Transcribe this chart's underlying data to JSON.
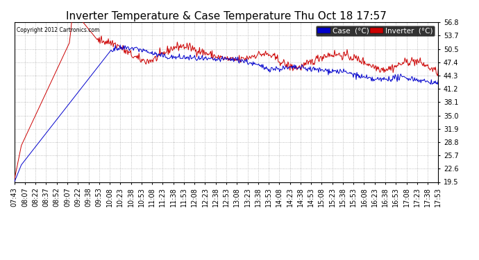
{
  "title": "Inverter Temperature & Case Temperature Thu Oct 18 17:57",
  "copyright": "Copyright 2012 Cartronics.com",
  "ylim": [
    19.5,
    56.8
  ],
  "yticks": [
    19.5,
    22.6,
    25.7,
    28.8,
    31.9,
    35.0,
    38.1,
    41.2,
    44.3,
    47.4,
    50.5,
    53.7,
    56.8
  ],
  "background_color": "#ffffff",
  "plot_bg_color": "#ffffff",
  "grid_color": "#aaaaaa",
  "case_color": "#0000cc",
  "inverter_color": "#cc0000",
  "legend_case_bg": "#0000cc",
  "legend_inverter_bg": "#cc0000",
  "title_fontsize": 11,
  "tick_fontsize": 7,
  "legend_fontsize": 7.5,
  "xtick_labels": [
    "07:43",
    "08:07",
    "08:22",
    "08:37",
    "08:52",
    "09:07",
    "09:22",
    "09:38",
    "09:53",
    "10:08",
    "10:23",
    "10:38",
    "10:53",
    "11:08",
    "11:23",
    "11:38",
    "11:53",
    "12:08",
    "12:23",
    "12:38",
    "12:53",
    "13:08",
    "13:23",
    "13:38",
    "13:53",
    "14:08",
    "14:23",
    "14:38",
    "14:53",
    "15:08",
    "15:23",
    "15:38",
    "15:53",
    "16:08",
    "16:23",
    "16:38",
    "16:53",
    "17:08",
    "17:23",
    "17:38",
    "17:53"
  ]
}
